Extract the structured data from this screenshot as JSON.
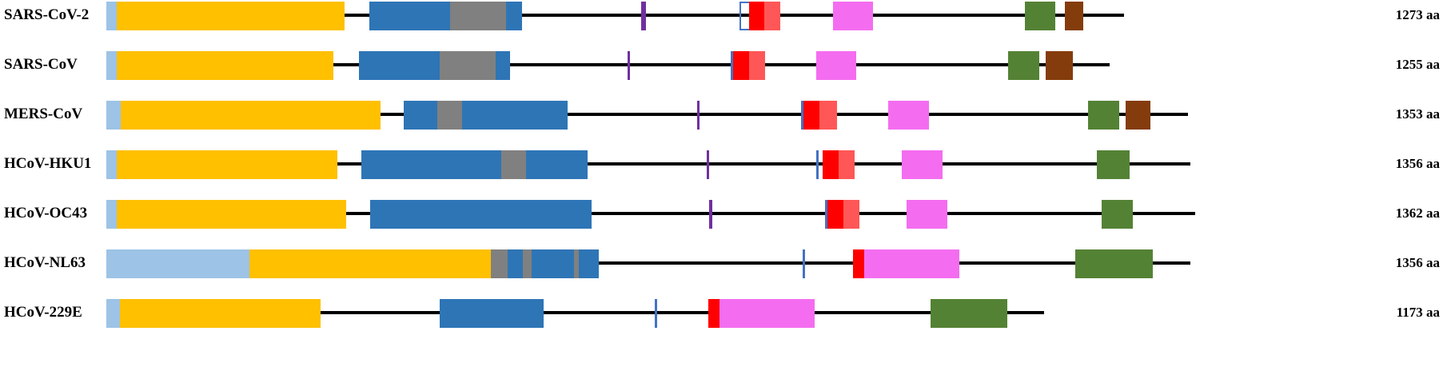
{
  "colors": {
    "backbone": "#000000",
    "signal-peptide": "#9DC3E6",
    "s1-region": "#FFC000",
    "receptor-binding": "#2E75B6",
    "insert": "#808080",
    "s2-cleavage-mark": "#7030A0",
    "fusion-peptide-start": "#FF0000",
    "fusion-peptide-end": "#FF5757",
    "heptad-repeat-1": "#F46DF0",
    "heptad-repeat-2": "#548235",
    "transmembrane": "#843C0C",
    "site-mark": "#4472C4"
  },
  "proteins": [
    {
      "name": "SARS-CoV-2",
      "length": 1273,
      "unit": "aa",
      "domains": [
        {
          "type": "signal-peptide",
          "start": 1,
          "end": 13
        },
        {
          "type": "s1-region",
          "start": 14,
          "end": 298
        },
        {
          "type": "receptor-binding",
          "start": 330,
          "end": 430
        },
        {
          "type": "insert",
          "start": 431,
          "end": 500
        },
        {
          "type": "receptor-binding",
          "start": 501,
          "end": 520
        },
        {
          "type": "s2-cleavage-mark",
          "start": 670,
          "end": 675
        },
        {
          "type": "site-mark-outline",
          "start": 793,
          "end": 815
        },
        {
          "type": "fusion-peptide-start",
          "start": 805,
          "end": 823
        },
        {
          "type": "fusion-peptide-end",
          "start": 824,
          "end": 843
        },
        {
          "type": "heptad-repeat-1",
          "start": 910,
          "end": 959
        },
        {
          "type": "heptad-repeat-2",
          "start": 1150,
          "end": 1187
        },
        {
          "type": "transmembrane",
          "start": 1200,
          "end": 1222
        }
      ]
    },
    {
      "name": "SARS-CoV",
      "length": 1255,
      "unit": "aa",
      "domains": [
        {
          "type": "signal-peptide",
          "start": 1,
          "end": 13
        },
        {
          "type": "s1-region",
          "start": 14,
          "end": 284
        },
        {
          "type": "receptor-binding",
          "start": 317,
          "end": 417
        },
        {
          "type": "insert",
          "start": 418,
          "end": 487
        },
        {
          "type": "receptor-binding",
          "start": 488,
          "end": 505
        },
        {
          "type": "s2-cleavage-mark",
          "start": 653,
          "end": 654
        },
        {
          "type": "site-mark",
          "start": 782,
          "end": 784
        },
        {
          "type": "fusion-peptide-start",
          "start": 785,
          "end": 804
        },
        {
          "type": "fusion-peptide-end",
          "start": 805,
          "end": 824
        },
        {
          "type": "heptad-repeat-1",
          "start": 889,
          "end": 938
        },
        {
          "type": "heptad-repeat-2",
          "start": 1129,
          "end": 1167
        },
        {
          "type": "transmembrane",
          "start": 1176,
          "end": 1209
        }
      ]
    },
    {
      "name": "MERS-CoV",
      "length": 1353,
      "unit": "aa",
      "domains": [
        {
          "type": "signal-peptide",
          "start": 1,
          "end": 18
        },
        {
          "type": "s1-region",
          "start": 19,
          "end": 343
        },
        {
          "type": "receptor-binding",
          "start": 373,
          "end": 414
        },
        {
          "type": "insert",
          "start": 415,
          "end": 445
        },
        {
          "type": "receptor-binding",
          "start": 446,
          "end": 577
        },
        {
          "type": "s2-cleavage-mark",
          "start": 740,
          "end": 741
        },
        {
          "type": "site-mark",
          "start": 870,
          "end": 872
        },
        {
          "type": "fusion-peptide-start",
          "start": 873,
          "end": 892
        },
        {
          "type": "fusion-peptide-end",
          "start": 893,
          "end": 914
        },
        {
          "type": "heptad-repeat-1",
          "start": 979,
          "end": 1029
        },
        {
          "type": "heptad-repeat-2",
          "start": 1229,
          "end": 1267
        },
        {
          "type": "transmembrane",
          "start": 1276,
          "end": 1306
        }
      ]
    },
    {
      "name": "HCoV-HKU1",
      "length": 1356,
      "unit": "aa",
      "domains": [
        {
          "type": "signal-peptide",
          "start": 1,
          "end": 13
        },
        {
          "type": "s1-region",
          "start": 14,
          "end": 289
        },
        {
          "type": "receptor-binding",
          "start": 320,
          "end": 494
        },
        {
          "type": "insert",
          "start": 495,
          "end": 525
        },
        {
          "type": "receptor-binding",
          "start": 526,
          "end": 602
        },
        {
          "type": "s2-cleavage-mark",
          "start": 752,
          "end": 753
        },
        {
          "type": "site-mark",
          "start": 889,
          "end": 891
        },
        {
          "type": "fusion-peptide-start",
          "start": 897,
          "end": 916
        },
        {
          "type": "fusion-peptide-end",
          "start": 917,
          "end": 936
        },
        {
          "type": "heptad-repeat-1",
          "start": 996,
          "end": 1046
        },
        {
          "type": "heptad-repeat-2",
          "start": 1240,
          "end": 1280
        }
      ]
    },
    {
      "name": "HCoV-OC43",
      "length": 1362,
      "unit": "aa",
      "domains": [
        {
          "type": "signal-peptide",
          "start": 1,
          "end": 13
        },
        {
          "type": "s1-region",
          "start": 14,
          "end": 300
        },
        {
          "type": "receptor-binding",
          "start": 331,
          "end": 607
        },
        {
          "type": "s2-cleavage-mark",
          "start": 755,
          "end": 758
        },
        {
          "type": "site-mark",
          "start": 900,
          "end": 902
        },
        {
          "type": "fusion-peptide-start",
          "start": 903,
          "end": 922
        },
        {
          "type": "fusion-peptide-end",
          "start": 923,
          "end": 942
        },
        {
          "type": "heptad-repeat-1",
          "start": 1002,
          "end": 1052
        },
        {
          "type": "heptad-repeat-2",
          "start": 1246,
          "end": 1284
        }
      ]
    },
    {
      "name": "HCoV-NL63",
      "length": 1356,
      "unit": "aa",
      "domains": [
        {
          "type": "signal-peptide",
          "start": 1,
          "end": 179
        },
        {
          "type": "s1-region",
          "start": 180,
          "end": 481
        },
        {
          "type": "insert",
          "start": 482,
          "end": 502
        },
        {
          "type": "receptor-binding",
          "start": 503,
          "end": 521
        },
        {
          "type": "insert",
          "start": 522,
          "end": 532
        },
        {
          "type": "receptor-binding",
          "start": 533,
          "end": 585
        },
        {
          "type": "insert",
          "start": 586,
          "end": 591
        },
        {
          "type": "receptor-binding",
          "start": 592,
          "end": 616
        },
        {
          "type": "site-mark",
          "start": 872,
          "end": 874
        },
        {
          "type": "fusion-peptide-start",
          "start": 935,
          "end": 948
        },
        {
          "type": "heptad-repeat-1",
          "start": 949,
          "end": 1067
        },
        {
          "type": "heptad-repeat-2",
          "start": 1213,
          "end": 1309
        }
      ]
    },
    {
      "name": "HCoV-229E",
      "length": 1173,
      "unit": "aa",
      "domains": [
        {
          "type": "signal-peptide",
          "start": 1,
          "end": 17
        },
        {
          "type": "s1-region",
          "start": 18,
          "end": 268
        },
        {
          "type": "receptor-binding",
          "start": 418,
          "end": 547
        },
        {
          "type": "site-mark",
          "start": 687,
          "end": 689
        },
        {
          "type": "fusion-peptide-start",
          "start": 754,
          "end": 767
        },
        {
          "type": "heptad-repeat-1",
          "start": 768,
          "end": 886
        },
        {
          "type": "heptad-repeat-2",
          "start": 1032,
          "end": 1127
        }
      ]
    }
  ]
}
